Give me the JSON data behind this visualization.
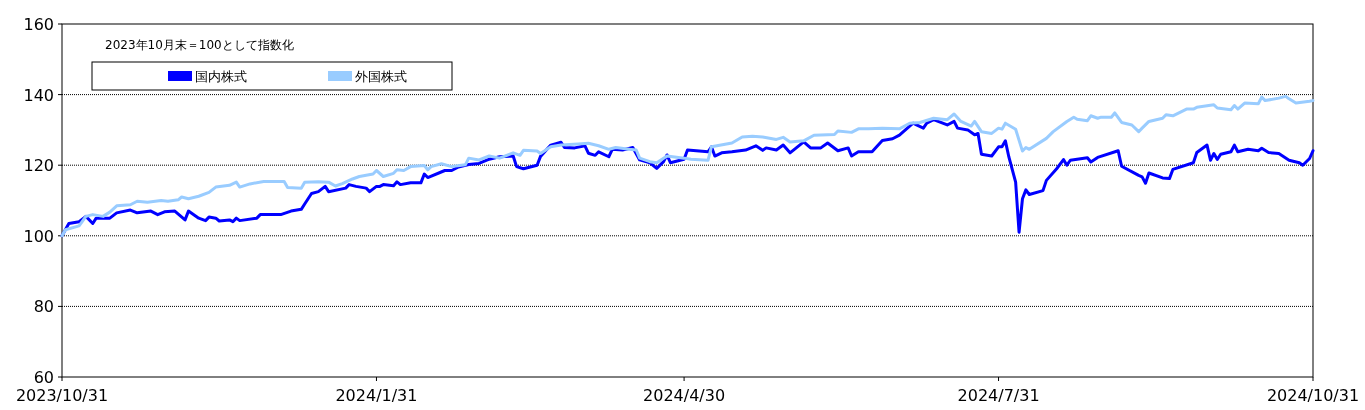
{
  "chart_data": {
    "type": "line",
    "annotations": [
      "2023年10月末＝100として指数化"
    ],
    "xlim": [
      "2023-10-31",
      "2024-10-31"
    ],
    "xticks": [
      {
        "value": "2023-10-31",
        "label": "2023/10/31"
      },
      {
        "value": "2024-01-31",
        "label": "2024/1/31"
      },
      {
        "value": "2024-04-30",
        "label": "2024/4/30"
      },
      {
        "value": "2024-07-31",
        "label": "2024/7/31"
      },
      {
        "value": "2024-10-31",
        "label": "2024/10/31"
      }
    ],
    "ylim": [
      60,
      160
    ],
    "yticks": [
      60,
      80,
      100,
      120,
      140,
      160
    ],
    "grid": "y",
    "legend": "top left",
    "marker": "none",
    "line_style": "solid",
    "series": [
      {
        "name": "国内株式",
        "color": "#0000ff",
        "x": [
          "2023-10-31",
          "2023-11-02",
          "2023-11-05",
          "2023-11-07",
          "2023-11-09",
          "2023-11-10",
          "2023-11-14",
          "2023-11-16",
          "2023-11-20",
          "2023-11-22",
          "2023-11-26",
          "2023-11-28",
          "2023-11-30",
          "2023-12-03",
          "2023-12-06",
          "2023-12-07",
          "2023-12-10",
          "2023-12-12",
          "2023-12-13",
          "2023-12-15",
          "2023-12-16",
          "2023-12-19",
          "2023-12-20",
          "2023-12-21",
          "2023-12-22",
          "2023-12-27",
          "2023-12-28",
          "2024-01-03",
          "2024-01-06",
          "2024-01-09",
          "2024-01-10",
          "2024-01-12",
          "2024-01-14",
          "2024-01-16",
          "2024-01-17",
          "2024-01-22",
          "2024-01-23",
          "2024-01-25",
          "2024-01-28",
          "2024-01-29",
          "2024-01-31",
          "2024-02-01",
          "2024-02-02",
          "2024-02-05",
          "2024-02-06",
          "2024-02-07",
          "2024-02-10",
          "2024-02-13",
          "2024-02-14",
          "2024-02-15",
          "2024-02-20",
          "2024-02-22",
          "2024-02-24",
          "2024-02-27",
          "2024-03-01",
          "2024-03-04",
          "2024-03-07",
          "2024-03-11",
          "2024-03-12",
          "2024-03-14",
          "2024-03-18",
          "2024-03-19",
          "2024-03-22",
          "2024-03-25",
          "2024-03-26",
          "2024-03-29",
          "2024-04-01",
          "2024-04-02",
          "2024-04-04",
          "2024-04-05",
          "2024-04-08",
          "2024-04-09",
          "2024-04-12",
          "2024-04-15",
          "2024-04-17",
          "2024-04-20",
          "2024-04-22",
          "2024-04-24",
          "2024-04-25",
          "2024-04-26",
          "2024-04-30",
          "2024-05-01",
          "2024-05-07",
          "2024-05-08",
          "2024-05-09",
          "2024-05-11",
          "2024-05-14",
          "2024-05-18",
          "2024-05-21",
          "2024-05-23",
          "2024-05-24",
          "2024-05-27",
          "2024-05-29",
          "2024-05-31",
          "2024-06-04",
          "2024-06-06",
          "2024-06-09",
          "2024-06-11",
          "2024-06-14",
          "2024-06-17",
          "2024-06-18",
          "2024-06-20",
          "2024-06-24",
          "2024-06-27",
          "2024-06-30",
          "2024-07-02",
          "2024-07-06",
          "2024-07-07",
          "2024-07-09",
          "2024-07-10",
          "2024-07-12",
          "2024-07-16",
          "2024-07-18",
          "2024-07-19",
          "2024-07-22",
          "2024-07-24",
          "2024-07-25",
          "2024-07-26",
          "2024-07-29",
          "2024-07-31",
          "2024-08-01",
          "2024-08-02",
          "2024-08-03",
          "2024-08-05",
          "2024-08-06",
          "2024-08-07",
          "2024-08-08",
          "2024-08-09",
          "2024-08-13",
          "2024-08-14",
          "2024-08-17",
          "2024-08-19",
          "2024-08-20",
          "2024-08-21",
          "2024-08-26",
          "2024-08-27",
          "2024-08-29",
          "2024-09-04",
          "2024-09-05",
          "2024-09-10",
          "2024-09-11",
          "2024-09-12",
          "2024-09-13",
          "2024-09-17",
          "2024-09-19",
          "2024-09-20",
          "2024-09-26",
          "2024-09-27",
          "2024-09-30",
          "2024-10-01",
          "2024-10-02",
          "2024-10-03",
          "2024-10-04",
          "2024-10-07",
          "2024-10-08",
          "2024-10-09",
          "2024-10-12",
          "2024-10-15",
          "2024-10-16",
          "2024-10-18",
          "2024-10-21",
          "2024-10-24",
          "2024-10-27",
          "2024-10-28",
          "2024-10-30",
          "2024-10-31"
        ],
        "values": [
          100,
          103.5,
          104,
          105.5,
          103.5,
          105,
          105,
          106.5,
          107.3,
          106.5,
          107,
          106,
          106.8,
          107,
          104.5,
          107,
          105,
          104.3,
          105.3,
          105,
          104.2,
          104.5,
          104,
          105,
          104.3,
          105,
          106,
          106,
          107,
          107.5,
          109,
          112,
          112.5,
          114,
          112.5,
          113.5,
          114.5,
          114,
          113.5,
          112.5,
          114,
          114,
          114.5,
          114.2,
          115.3,
          114.5,
          115,
          115,
          117.5,
          116.5,
          118.5,
          118.5,
          119.5,
          120.2,
          120.5,
          121.7,
          122.4,
          122.6,
          119.6,
          119,
          120,
          122.5,
          125.7,
          126.5,
          125,
          124.9,
          125.5,
          123.4,
          122.8,
          123.8,
          122.4,
          124.5,
          124.3,
          125,
          121.5,
          120.7,
          119.1,
          121,
          122.9,
          120.7,
          121.7,
          124.3,
          123.8,
          125.2,
          122.6,
          123.5,
          123.8,
          124.3,
          125.5,
          124.2,
          124.9,
          124.3,
          125.7,
          123.5,
          126.6,
          124.9,
          124.9,
          126.3,
          124.1,
          124.9,
          122.6,
          123.8,
          123.8,
          127,
          127.5,
          128.5,
          131.9,
          131.4,
          130.5,
          131.9,
          132.9,
          131.4,
          132.4,
          130.5,
          130,
          128.6,
          129,
          123.1,
          122.6,
          125.2,
          125.2,
          126.9,
          122.4,
          115.2,
          101,
          110.5,
          113,
          111.7,
          112.8,
          115.7,
          119,
          121.6,
          120,
          121.4,
          122.1,
          120.9,
          122.2,
          124.1,
          119.7,
          117.1,
          116.7,
          114.9,
          117.8,
          116.4,
          116.2,
          118.8,
          120.7,
          123.6,
          125.7,
          121.4,
          123.3,
          121.6,
          123.1,
          123.8,
          125.7,
          123.8,
          124.5,
          124.1,
          124.8,
          123.6,
          123.3,
          121.4,
          120.7,
          120,
          121.9,
          124.1
        ]
      },
      {
        "name": "外国株式",
        "color": "#99ccff",
        "x": [
          "2023-10-31",
          "2023-11-01",
          "2023-11-05",
          "2023-11-07",
          "2023-11-09",
          "2023-11-12",
          "2023-11-14",
          "2023-11-16",
          "2023-11-20",
          "2023-11-22",
          "2023-11-25",
          "2023-11-29",
          "2023-12-01",
          "2023-12-04",
          "2023-12-05",
          "2023-12-07",
          "2023-12-10",
          "2023-12-13",
          "2023-12-15",
          "2023-12-19",
          "2023-12-21",
          "2023-12-22",
          "2023-12-25",
          "2023-12-29",
          "2024-01-04",
          "2024-01-05",
          "2024-01-09",
          "2024-01-10",
          "2024-01-14",
          "2024-01-17",
          "2024-01-19",
          "2024-01-21",
          "2024-01-24",
          "2024-01-26",
          "2024-01-30",
          "2024-01-31",
          "2024-02-02",
          "2024-02-05",
          "2024-02-06",
          "2024-02-08",
          "2024-02-10",
          "2024-02-14",
          "2024-02-15",
          "2024-02-16",
          "2024-02-19",
          "2024-02-22",
          "2024-02-26",
          "2024-02-27",
          "2024-03-01",
          "2024-03-04",
          "2024-03-07",
          "2024-03-11",
          "2024-03-13",
          "2024-03-14",
          "2024-03-18",
          "2024-03-19",
          "2024-03-22",
          "2024-03-25",
          "2024-03-30",
          "2024-04-02",
          "2024-04-05",
          "2024-04-08",
          "2024-04-10",
          "2024-04-14",
          "2024-04-16",
          "2024-04-17",
          "2024-04-20",
          "2024-04-22",
          "2024-04-25",
          "2024-04-30",
          "2024-05-02",
          "2024-05-07",
          "2024-05-08",
          "2024-05-14",
          "2024-05-17",
          "2024-05-20",
          "2024-05-23",
          "2024-05-27",
          "2024-05-29",
          "2024-05-31",
          "2024-06-04",
          "2024-06-07",
          "2024-06-13",
          "2024-06-14",
          "2024-06-18",
          "2024-06-20",
          "2024-06-23",
          "2024-06-27",
          "2024-07-02",
          "2024-07-05",
          "2024-07-08",
          "2024-07-12",
          "2024-07-16",
          "2024-07-18",
          "2024-07-20",
          "2024-07-23",
          "2024-07-24",
          "2024-07-26",
          "2024-07-29",
          "2024-07-31",
          "2024-08-01",
          "2024-08-02",
          "2024-08-05",
          "2024-08-07",
          "2024-08-08",
          "2024-08-09",
          "2024-08-14",
          "2024-08-16",
          "2024-08-20",
          "2024-08-22",
          "2024-08-23",
          "2024-08-26",
          "2024-08-27",
          "2024-08-29",
          "2024-08-30",
          "2024-09-02",
          "2024-09-03",
          "2024-09-05",
          "2024-09-08",
          "2024-09-10",
          "2024-09-11",
          "2024-09-13",
          "2024-09-17",
          "2024-09-18",
          "2024-09-20",
          "2024-09-24",
          "2024-09-26",
          "2024-09-27",
          "2024-10-02",
          "2024-10-03",
          "2024-10-07",
          "2024-10-08",
          "2024-10-09",
          "2024-10-11",
          "2024-10-15",
          "2024-10-16",
          "2024-10-17",
          "2024-10-21",
          "2024-10-23",
          "2024-10-24",
          "2024-10-26",
          "2024-10-30",
          "2024-10-31"
        ],
        "values": [
          100,
          101.7,
          102.8,
          105.5,
          106,
          105.5,
          106.7,
          108.5,
          108.8,
          109.8,
          109.5,
          110,
          109.8,
          110.2,
          111,
          110.5,
          111.2,
          112.3,
          113.8,
          114.3,
          115.2,
          113.8,
          114.7,
          115.4,
          115.4,
          113.7,
          113.5,
          115.2,
          115.3,
          115.2,
          114.1,
          114.8,
          116.1,
          116.8,
          117.5,
          118.5,
          116.8,
          117.7,
          118.7,
          118.5,
          119.6,
          119.9,
          118.7,
          119.6,
          120.4,
          119.6,
          120.1,
          122,
          121.5,
          122.6,
          122,
          123.5,
          122.8,
          124.2,
          124,
          123.3,
          125.2,
          125.7,
          126,
          126.2,
          125.5,
          124.5,
          125,
          124.5,
          124.3,
          122,
          121,
          120.7,
          122.6,
          122,
          121.7,
          121.4,
          125.2,
          126.3,
          128,
          128.2,
          128,
          127.3,
          127.9,
          126.6,
          126.9,
          128.5,
          128.7,
          129.7,
          129.3,
          130.3,
          130.3,
          130.5,
          130.3,
          131.9,
          132.1,
          133.3,
          132.9,
          134.5,
          132.4,
          131.1,
          132.4,
          129.5,
          129,
          130.5,
          130.2,
          131.9,
          130.2,
          124,
          125,
          124.5,
          127.6,
          129.5,
          132.4,
          133.6,
          133,
          132.6,
          134,
          133.3,
          133.6,
          133.6,
          134.8,
          132.1,
          131.4,
          129.5,
          130.5,
          132.4,
          133.3,
          134.3,
          134,
          135.9,
          135.9,
          136.4,
          137.1,
          136.2,
          135.7,
          136.9,
          135.9,
          137.6,
          137.4,
          139.3,
          138.3,
          139,
          139.5,
          138.8,
          137.6,
          138.1,
          138.3
        ]
      }
    ]
  }
}
